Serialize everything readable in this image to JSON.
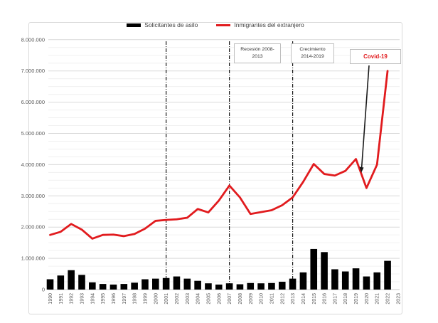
{
  "chart_data": {
    "type": "bar+line combo",
    "title": "",
    "years": [
      1990,
      1991,
      1992,
      1993,
      1994,
      1995,
      1996,
      1997,
      1998,
      1999,
      2000,
      2001,
      2002,
      2003,
      2004,
      2005,
      2006,
      2007,
      2008,
      2009,
      2010,
      2011,
      2012,
      2013,
      2014,
      2015,
      2016,
      2017,
      2018,
      2019,
      2020,
      2021,
      2022,
      2023
    ],
    "series": [
      {
        "name": "Solicitantes de asilo",
        "type": "bar",
        "color": "#000000",
        "values": [
          330000,
          450000,
          620000,
          470000,
          230000,
          180000,
          160000,
          180000,
          220000,
          330000,
          350000,
          370000,
          420000,
          350000,
          280000,
          200000,
          160000,
          200000,
          170000,
          210000,
          200000,
          210000,
          250000,
          350000,
          550000,
          1300000,
          1200000,
          650000,
          580000,
          680000,
          420000,
          550000,
          920000,
          null
        ]
      },
      {
        "name": "Inmigrantes del extranjero",
        "type": "line",
        "color": "#e11b1e",
        "values": [
          1750000,
          1850000,
          2100000,
          1920000,
          1630000,
          1750000,
          1760000,
          1710000,
          1780000,
          1950000,
          2200000,
          2230000,
          2250000,
          2300000,
          2580000,
          2470000,
          2850000,
          3330000,
          2950000,
          2420000,
          2480000,
          2540000,
          2700000,
          2950000,
          3450000,
          4020000,
          3700000,
          3650000,
          3800000,
          4180000,
          3250000,
          4000000,
          7000000,
          null
        ]
      }
    ],
    "y_axis": {
      "min": 0,
      "max": 8000000,
      "major_unit": 1000000,
      "minor_unit": 250000,
      "tick_labels": [
        "0",
        "1.000.000",
        "2.000.000",
        "3.000.000",
        "4.000.000",
        "5.000.000",
        "6.000.000",
        "7.000.000",
        "8.000.000"
      ]
    },
    "x_axis": {
      "label_rotation": -90
    },
    "grid": {
      "horizontal_major": true,
      "horizontal_minor": true
    },
    "legend_position": "top",
    "dashed_vertical_lines_years": [
      2001,
      2007,
      2013
    ],
    "annotations": {
      "recession": {
        "line1": "Recesión 2008-",
        "line2": "2013"
      },
      "growth": {
        "line1": "Crecimiento",
        "line2": "2014-2019"
      },
      "covid": {
        "label": "Covid-19",
        "color": "#e11b1e",
        "arrow_points_to_year": 2020
      }
    }
  }
}
